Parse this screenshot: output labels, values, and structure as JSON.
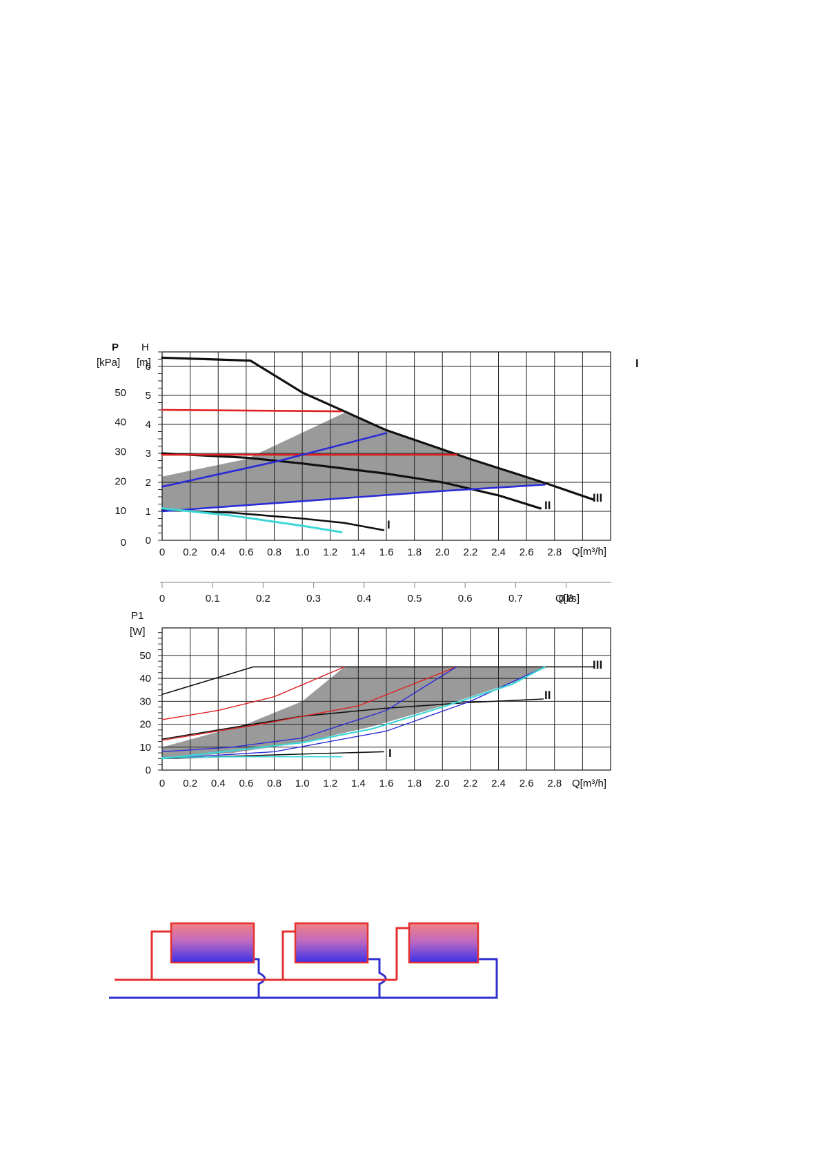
{
  "colors": {
    "black": "#111111",
    "red": "#e02020",
    "blue": "#2b2bd8",
    "cyan": "#3cd6d6",
    "gray_region": "#9a9a9a",
    "radiator_top": "#f08080",
    "radiator_bottom": "#3a2fe8",
    "pipe_red": "#e53030",
    "pipe_blue": "#2f2fd0"
  },
  "stray_mark": "I",
  "chart_data": [
    {
      "type": "line",
      "id": "head-chart",
      "x_label": "Q[m³/h]",
      "y_label_left": {
        "symbol": "P",
        "unit": "[kPa]"
      },
      "y_label_right": {
        "symbol": "H",
        "unit": "[m]"
      },
      "xlim": [
        0,
        3.2
      ],
      "ylim": [
        0,
        6.5
      ],
      "x_ticks": [
        "0",
        "0.2",
        "0.4",
        "0.6",
        "0.8",
        "1.0",
        "1.2",
        "1.4",
        "1.6",
        "1.8",
        "2.0",
        "2.2",
        "2.4",
        "2.6",
        "2.8"
      ],
      "x_tick_values": [
        0,
        0.2,
        0.4,
        0.6,
        0.8,
        1.0,
        1.2,
        1.4,
        1.6,
        1.8,
        2.0,
        2.2,
        2.4,
        2.6,
        2.8
      ],
      "h_ticks": [
        "0",
        "1",
        "2",
        "3",
        "4",
        "5",
        "6"
      ],
      "h_tick_values": [
        0,
        1,
        2,
        3,
        4,
        5,
        6
      ],
      "p_ticks": [
        "0",
        "10",
        "20",
        "30",
        "40",
        "50"
      ],
      "p_tick_values": [
        0,
        10,
        20,
        30,
        40,
        50
      ],
      "p_per_h": 9.81,
      "region": [
        [
          0,
          2.2
        ],
        [
          0.6,
          2.8
        ],
        [
          1.3,
          4.4
        ],
        [
          1.6,
          3.8
        ],
        [
          2.2,
          2.8
        ],
        [
          2.75,
          1.95
        ],
        [
          0,
          1.0
        ]
      ],
      "series": [
        {
          "id": "curve-III",
          "label": "III",
          "color_key": "black",
          "width": 3.2,
          "points": [
            [
              0,
              6.3
            ],
            [
              0.63,
              6.2
            ],
            [
              1.0,
              5.1
            ],
            [
              1.6,
              3.8
            ],
            [
              2.2,
              2.8
            ],
            [
              2.75,
              1.95
            ],
            [
              3.08,
              1.4
            ]
          ]
        },
        {
          "id": "curve-II",
          "label": "II",
          "color_key": "black",
          "width": 3.2,
          "points": [
            [
              0,
              3.0
            ],
            [
              0.6,
              2.85
            ],
            [
              1.0,
              2.65
            ],
            [
              1.6,
              2.3
            ],
            [
              2.0,
              2.0
            ],
            [
              2.4,
              1.55
            ],
            [
              2.7,
              1.1
            ]
          ]
        },
        {
          "id": "curve-I",
          "label": "I",
          "color_key": "black",
          "width": 2.6,
          "points": [
            [
              0,
              1.05
            ],
            [
              0.5,
              0.95
            ],
            [
              1.0,
              0.75
            ],
            [
              1.3,
              0.6
            ],
            [
              1.58,
              0.35
            ]
          ]
        },
        {
          "id": "red-upper",
          "color_key": "red",
          "width": 2.6,
          "points": [
            [
              0,
              4.5
            ],
            [
              1.28,
              4.45
            ]
          ]
        },
        {
          "id": "red-lower",
          "color_key": "red",
          "width": 2.6,
          "points": [
            [
              0,
              2.95
            ],
            [
              2.1,
              2.95
            ]
          ]
        },
        {
          "id": "blue-upper",
          "color_key": "blue",
          "width": 2.6,
          "points": [
            [
              0,
              1.85
            ],
            [
              0.8,
              2.7
            ],
            [
              1.6,
              3.7
            ]
          ]
        },
        {
          "id": "blue-lower",
          "color_key": "blue",
          "width": 2.6,
          "points": [
            [
              0,
              1.0
            ],
            [
              1.0,
              1.35
            ],
            [
              2.0,
              1.7
            ],
            [
              2.73,
              1.92
            ]
          ]
        },
        {
          "id": "cyan",
          "color_key": "cyan",
          "width": 3.0,
          "points": [
            [
              0,
              1.1
            ],
            [
              0.5,
              0.85
            ],
            [
              1.0,
              0.5
            ],
            [
              1.28,
              0.28
            ]
          ]
        }
      ]
    },
    {
      "type": "axis",
      "id": "flow-ls-axis",
      "x_label": "Q[l/s]",
      "xlim": [
        0,
        0.888
      ],
      "x_ticks": [
        "0",
        "0.1",
        "0.2",
        "0.3",
        "0.4",
        "0.5",
        "0.6",
        "0.7",
        "0.8"
      ],
      "x_tick_values": [
        0,
        0.1,
        0.2,
        0.3,
        0.4,
        0.5,
        0.6,
        0.7,
        0.8
      ]
    },
    {
      "type": "line",
      "id": "power-chart",
      "x_label": "Q[m³/h]",
      "y_label": {
        "symbol": "P1",
        "unit": "[W]"
      },
      "xlim": [
        0,
        3.2
      ],
      "ylim": [
        0,
        62
      ],
      "x_ticks": [
        "0",
        "0.2",
        "0.4",
        "0.6",
        "0.8",
        "1.0",
        "1.2",
        "1.4",
        "1.6",
        "1.8",
        "2.0",
        "2.2",
        "2.4",
        "2.6",
        "2.8"
      ],
      "x_tick_values": [
        0,
        0.2,
        0.4,
        0.6,
        0.8,
        1.0,
        1.2,
        1.4,
        1.6,
        1.8,
        2.0,
        2.2,
        2.4,
        2.6,
        2.8
      ],
      "y_ticks": [
        "0",
        "10",
        "20",
        "30",
        "40",
        "50"
      ],
      "y_tick_values": [
        0,
        10,
        20,
        30,
        40,
        50
      ],
      "region": [
        [
          0,
          10
        ],
        [
          0.6,
          20
        ],
        [
          1.0,
          30
        ],
        [
          1.3,
          45
        ],
        [
          2.75,
          45
        ],
        [
          2.5,
          38
        ],
        [
          2.0,
          28
        ],
        [
          1.5,
          19
        ],
        [
          1.0,
          12
        ],
        [
          0.5,
          7.5
        ],
        [
          0,
          5
        ]
      ],
      "series": [
        {
          "id": "power-III",
          "label": "III",
          "color_key": "black",
          "width": 1.6,
          "points": [
            [
              0,
              33
            ],
            [
              0.65,
              45
            ],
            [
              3.08,
              45
            ]
          ]
        },
        {
          "id": "power-II",
          "label": "II",
          "color_key": "black",
          "width": 1.6,
          "points": [
            [
              0,
              13.5
            ],
            [
              0.6,
              19.5
            ],
            [
              1.0,
              23.5
            ],
            [
              1.6,
              27
            ],
            [
              2.2,
              29.5
            ],
            [
              2.72,
              31
            ]
          ]
        },
        {
          "id": "power-I",
          "label": "I",
          "color_key": "black",
          "width": 1.6,
          "points": [
            [
              0,
              5
            ],
            [
              0.5,
              6
            ],
            [
              1.0,
              7
            ],
            [
              1.58,
              8
            ]
          ]
        },
        {
          "id": "power-red-upper",
          "color_key": "red",
          "width": 1.4,
          "points": [
            [
              0,
              22
            ],
            [
              0.4,
              26
            ],
            [
              0.8,
              32
            ],
            [
              1.3,
              45
            ]
          ]
        },
        {
          "id": "power-red-lower",
          "color_key": "red",
          "width": 1.4,
          "points": [
            [
              0,
              13
            ],
            [
              0.7,
              20
            ],
            [
              1.4,
              28
            ],
            [
              2.1,
              45
            ]
          ]
        },
        {
          "id": "power-blue-upper",
          "color_key": "blue",
          "width": 1.4,
          "points": [
            [
              0,
              8
            ],
            [
              0.5,
              10
            ],
            [
              1.0,
              14
            ],
            [
              1.6,
              26
            ],
            [
              2.1,
              45
            ]
          ]
        },
        {
          "id": "power-blue-lower",
          "color_key": "blue",
          "width": 1.4,
          "points": [
            [
              0,
              5
            ],
            [
              0.8,
              8
            ],
            [
              1.6,
              17
            ],
            [
              2.2,
              30
            ],
            [
              2.73,
              45
            ]
          ]
        },
        {
          "id": "power-cyan-low",
          "color_key": "cyan",
          "width": 1.6,
          "points": [
            [
              0,
              5.5
            ],
            [
              0.6,
              5.8
            ],
            [
              1.28,
              5.8
            ]
          ]
        },
        {
          "id": "power-cyan",
          "color_key": "cyan",
          "width": 2.2,
          "points": [
            [
              0,
              5
            ],
            [
              1.0,
              12
            ],
            [
              1.5,
              18
            ],
            [
              2.0,
              27.5
            ],
            [
              2.5,
              37.5
            ],
            [
              2.73,
              45
            ]
          ]
        }
      ]
    }
  ]
}
